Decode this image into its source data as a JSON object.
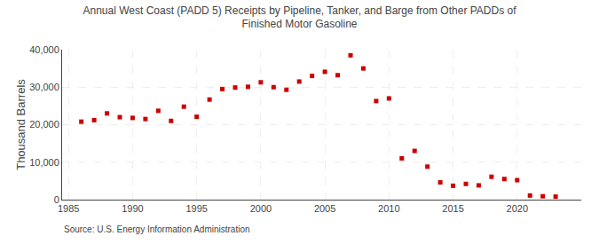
{
  "chart_data": {
    "type": "scatter",
    "title": "Annual West Coast (PADD 5) Receipts by Pipeline, Tanker, and Barge from Other PADDs of\nFinished Motor Gasoline",
    "y_label": "Thousand Barrels",
    "annotations": [
      "Source: U.S. Energy Information Administration"
    ],
    "x": [
      1986,
      1987,
      1988,
      1989,
      1990,
      1991,
      1992,
      1993,
      1994,
      1995,
      1996,
      1997,
      1998,
      1999,
      2000,
      2001,
      2002,
      2003,
      2004,
      2005,
      2006,
      2007,
      2008,
      2009,
      2010,
      2011,
      2012,
      2013,
      2014,
      2015,
      2016,
      2017,
      2018,
      2019,
      2020,
      2021,
      2022,
      2023
    ],
    "values": [
      20800,
      21200,
      23000,
      22000,
      21800,
      21500,
      23700,
      21000,
      24800,
      22100,
      26700,
      29500,
      29900,
      30100,
      31300,
      30000,
      29300,
      31500,
      33000,
      34100,
      33200,
      38500,
      35000,
      26300,
      27000,
      11000,
      13000,
      8800,
      4600,
      3700,
      4200,
      3800,
      6100,
      5500,
      5200,
      1100,
      900,
      800
    ],
    "color": "#cc0000",
    "marker": "square",
    "xlim": [
      1984.5,
      2025
    ],
    "xticks": [
      1985,
      1990,
      1995,
      2000,
      2005,
      2010,
      2015,
      2020
    ],
    "ylim": [
      0,
      40000
    ],
    "yticks": [
      0,
      {
        "value": 10000,
        "label": "10,000"
      },
      {
        "value": 20000,
        "label": "20,000"
      },
      {
        "value": 30000,
        "label": "30,000"
      },
      {
        "value": 40000,
        "label": "40,000"
      }
    ],
    "grid": true
  }
}
